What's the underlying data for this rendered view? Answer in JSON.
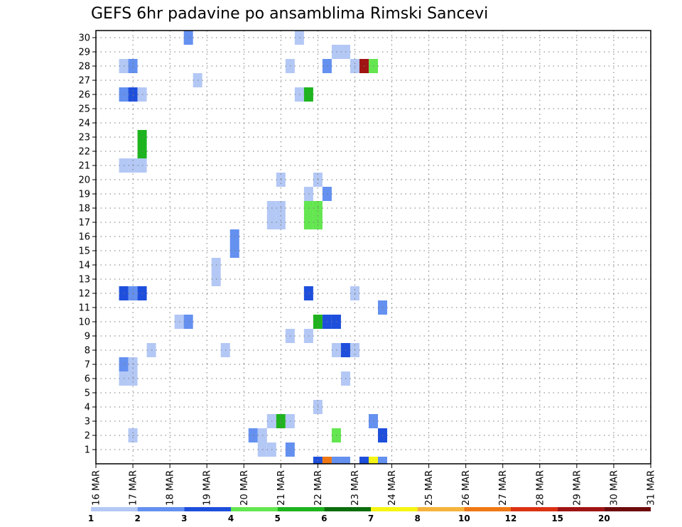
{
  "chart_data": {
    "type": "heatmap",
    "title": "GEFS 6hr padavine po ansamblima Rimski Sancevi",
    "x_tick_labels": [
      "16 MAR",
      "17 MAR",
      "18 MAR",
      "19 MAR",
      "20 MAR",
      "21 MAR",
      "22 MAR",
      "23 MAR",
      "24 MAR",
      "25 MAR",
      "26 MAR",
      "27 MAR",
      "28 MAR",
      "29 MAR",
      "30 MAR",
      "31 MAR"
    ],
    "y_tick_labels": [
      "1",
      "2",
      "3",
      "4",
      "5",
      "6",
      "7",
      "8",
      "9",
      "10",
      "11",
      "12",
      "13",
      "14",
      "15",
      "16",
      "17",
      "18",
      "19",
      "20",
      "21",
      "22",
      "23",
      "24",
      "25",
      "26",
      "27",
      "28",
      "29",
      "30"
    ],
    "x_range_days": [
      0,
      15
    ],
    "y_range": [
      0,
      30
    ],
    "grid": true,
    "colorbar": {
      "position": "bottom",
      "colors": [
        "#b4c8f5",
        "#6490f0",
        "#1e4fdc",
        "#64e650",
        "#1eb41e",
        "#0a6e0a",
        "#f5f514",
        "#f5b43c",
        "#f07814",
        "#dc3214",
        "#a01414",
        "#6e0a0a"
      ],
      "labels": [
        "1",
        "2",
        "3",
        "4",
        "5",
        "6",
        "7",
        "8",
        "10",
        "12",
        "15",
        "20"
      ]
    },
    "cells": [
      {
        "t": 10,
        "y": 30,
        "c": "c2"
      },
      {
        "t": 22,
        "y": 30,
        "c": "c1"
      },
      {
        "t": 26,
        "y": 29,
        "c": "c1"
      },
      {
        "t": 27,
        "y": 29,
        "c": "c1"
      },
      {
        "t": 3,
        "y": 28,
        "c": "c1"
      },
      {
        "t": 4,
        "y": 28,
        "c": "c2"
      },
      {
        "t": 21,
        "y": 28,
        "c": "c1"
      },
      {
        "t": 25,
        "y": 28,
        "c": "c2"
      },
      {
        "t": 28,
        "y": 28,
        "c": "c1"
      },
      {
        "t": 29,
        "y": 28,
        "c": "c11"
      },
      {
        "t": 30,
        "y": 28,
        "c": "c4"
      },
      {
        "t": 11,
        "y": 27,
        "c": "c1"
      },
      {
        "t": 3,
        "y": 26,
        "c": "c2"
      },
      {
        "t": 4,
        "y": 26,
        "c": "c3"
      },
      {
        "t": 5,
        "y": 26,
        "c": "c1"
      },
      {
        "t": 22,
        "y": 26,
        "c": "c1"
      },
      {
        "t": 23,
        "y": 26,
        "c": "c5"
      },
      {
        "t": 5,
        "y": 23,
        "c": "c5"
      },
      {
        "t": 5,
        "y": 22,
        "c": "c5"
      },
      {
        "t": 3,
        "y": 21,
        "c": "c1"
      },
      {
        "t": 4,
        "y": 21,
        "c": "c1"
      },
      {
        "t": 5,
        "y": 21,
        "c": "c1"
      },
      {
        "t": 20,
        "y": 20,
        "c": "c1"
      },
      {
        "t": 24,
        "y": 20,
        "c": "c1"
      },
      {
        "t": 23,
        "y": 19,
        "c": "c1"
      },
      {
        "t": 25,
        "y": 19,
        "c": "c2"
      },
      {
        "t": 19,
        "y": 18,
        "c": "c1"
      },
      {
        "t": 20,
        "y": 18,
        "c": "c1"
      },
      {
        "t": 23,
        "y": 18,
        "c": "c4"
      },
      {
        "t": 24,
        "y": 18,
        "c": "c4"
      },
      {
        "t": 19,
        "y": 17,
        "c": "c1"
      },
      {
        "t": 20,
        "y": 17,
        "c": "c1"
      },
      {
        "t": 23,
        "y": 17,
        "c": "c4"
      },
      {
        "t": 24,
        "y": 17,
        "c": "c4"
      },
      {
        "t": 15,
        "y": 16,
        "c": "c2"
      },
      {
        "t": 15,
        "y": 15,
        "c": "c2"
      },
      {
        "t": 13,
        "y": 14,
        "c": "c1"
      },
      {
        "t": 13,
        "y": 13,
        "c": "c1"
      },
      {
        "t": 3,
        "y": 12,
        "c": "c3"
      },
      {
        "t": 4,
        "y": 12,
        "c": "c2"
      },
      {
        "t": 5,
        "y": 12,
        "c": "c3"
      },
      {
        "t": 23,
        "y": 12,
        "c": "c3"
      },
      {
        "t": 28,
        "y": 12,
        "c": "c1"
      },
      {
        "t": 31,
        "y": 11,
        "c": "c2"
      },
      {
        "t": 9,
        "y": 10,
        "c": "c1"
      },
      {
        "t": 10,
        "y": 10,
        "c": "c2"
      },
      {
        "t": 24,
        "y": 10,
        "c": "c5"
      },
      {
        "t": 25,
        "y": 10,
        "c": "c3"
      },
      {
        "t": 26,
        "y": 10,
        "c": "c3"
      },
      {
        "t": 21,
        "y": 9,
        "c": "c1"
      },
      {
        "t": 23,
        "y": 9,
        "c": "c1"
      },
      {
        "t": 6,
        "y": 8,
        "c": "c1"
      },
      {
        "t": 14,
        "y": 8,
        "c": "c1"
      },
      {
        "t": 26,
        "y": 8,
        "c": "c1"
      },
      {
        "t": 27,
        "y": 8,
        "c": "c3"
      },
      {
        "t": 28,
        "y": 8,
        "c": "c1"
      },
      {
        "t": 3,
        "y": 7,
        "c": "c2"
      },
      {
        "t": 4,
        "y": 7,
        "c": "c1"
      },
      {
        "t": 3,
        "y": 6,
        "c": "c1"
      },
      {
        "t": 4,
        "y": 6,
        "c": "c1"
      },
      {
        "t": 27,
        "y": 6,
        "c": "c1"
      },
      {
        "t": 24,
        "y": 4,
        "c": "c1"
      },
      {
        "t": 19,
        "y": 3,
        "c": "c1"
      },
      {
        "t": 20,
        "y": 3,
        "c": "c5"
      },
      {
        "t": 21,
        "y": 3,
        "c": "c1"
      },
      {
        "t": 30,
        "y": 3,
        "c": "c2"
      },
      {
        "t": 4,
        "y": 2,
        "c": "c1"
      },
      {
        "t": 17,
        "y": 2,
        "c": "c2"
      },
      {
        "t": 18,
        "y": 2,
        "c": "c1"
      },
      {
        "t": 26,
        "y": 2,
        "c": "c4"
      },
      {
        "t": 31,
        "y": 2,
        "c": "c3"
      },
      {
        "t": 18,
        "y": 1,
        "c": "c1"
      },
      {
        "t": 19,
        "y": 1,
        "c": "c1"
      },
      {
        "t": 21,
        "y": 1,
        "c": "c2"
      },
      {
        "t": 24,
        "y": 0,
        "c": "c3"
      },
      {
        "t": 25,
        "y": 0,
        "c": "c9"
      },
      {
        "t": 26,
        "y": 0,
        "c": "c2"
      },
      {
        "t": 27,
        "y": 0,
        "c": "c2"
      },
      {
        "t": 29,
        "y": 0,
        "c": "c3"
      },
      {
        "t": 30,
        "y": 0,
        "c": "c7"
      },
      {
        "t": 31,
        "y": 0,
        "c": "c2"
      }
    ]
  }
}
